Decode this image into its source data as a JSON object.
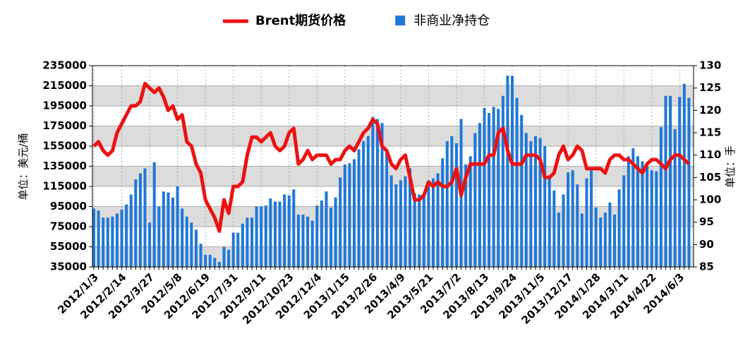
{
  "chart_data": {
    "type": "bar-line",
    "y_label": "单位：美元/桶",
    "y2_label": "单位：手",
    "categories": [
      "2012/1/3",
      null,
      null,
      null,
      null,
      null,
      "2012/2/14",
      null,
      null,
      null,
      null,
      null,
      "2012/3/27",
      null,
      null,
      null,
      null,
      null,
      "2012/5/8",
      null,
      null,
      null,
      null,
      null,
      "2012/6/19",
      null,
      null,
      null,
      null,
      null,
      "2012/7/31",
      null,
      null,
      null,
      null,
      null,
      "2012/9/11",
      null,
      null,
      null,
      null,
      null,
      "2012/10/23",
      null,
      null,
      null,
      null,
      null,
      "2012/12/4",
      null,
      null,
      null,
      null,
      null,
      "2013/1/15",
      null,
      null,
      null,
      null,
      null,
      "2013/2/26",
      null,
      null,
      null,
      null,
      null,
      "2013/4/9",
      null,
      null,
      null,
      null,
      null,
      "2013/5/21",
      null,
      null,
      null,
      null,
      null,
      "2013/7/2",
      null,
      null,
      null,
      null,
      null,
      "2013/8/13",
      null,
      null,
      null,
      null,
      null,
      "2013/9/24",
      null,
      null,
      null,
      null,
      null,
      "2013/11/5",
      null,
      null,
      null,
      null,
      null,
      "2013/12/17",
      null,
      null,
      null,
      null,
      null,
      "2014/1/28",
      null,
      null,
      null,
      null,
      null,
      "2014/3/11",
      null,
      null,
      null,
      null,
      null,
      "2014/4/22",
      null,
      null,
      null,
      null,
      null,
      "2014/6/3",
      null,
      null
    ],
    "series": [
      {
        "name": "Brent期货价格",
        "type": "line",
        "axis": "y2",
        "color": "#ee1111",
        "values": [
          112,
          113,
          111,
          110,
          111,
          115,
          117,
          119,
          121,
          121,
          122,
          126,
          125,
          124,
          125,
          123,
          120,
          121,
          118,
          119,
          113,
          112,
          108,
          106,
          100,
          98,
          96,
          93,
          100,
          97,
          103,
          103,
          104,
          110,
          114,
          114,
          113,
          114,
          115,
          112,
          111,
          112,
          115,
          116,
          108,
          109,
          111,
          109,
          110,
          110,
          110,
          108,
          109,
          109,
          111,
          112,
          111,
          113,
          115,
          116,
          118,
          117,
          112,
          111,
          108,
          107,
          109,
          110,
          105,
          100,
          100,
          101,
          104,
          103,
          104,
          103,
          103,
          104,
          107,
          101,
          105,
          108,
          108,
          108,
          108,
          110,
          110,
          115,
          116,
          111,
          108,
          108,
          108,
          110,
          110,
          110,
          109,
          105,
          105,
          106,
          110,
          112,
          109,
          110,
          112,
          111,
          107,
          107,
          107,
          107,
          106,
          109,
          110,
          110,
          109,
          109,
          108,
          107,
          106,
          108,
          109,
          109,
          108,
          107,
          109,
          110,
          110,
          109,
          108
        ]
      },
      {
        "name": "非商业净持仓",
        "type": "bar",
        "axis": "y",
        "color": "#1f77d9",
        "values": [
          93000,
          91000,
          84000,
          84000,
          85000,
          88000,
          92000,
          97000,
          107000,
          122000,
          128000,
          133000,
          79000,
          139000,
          95000,
          110000,
          109000,
          104000,
          115000,
          93000,
          85000,
          79000,
          72000,
          58000,
          47000,
          47000,
          44000,
          40000,
          55000,
          52000,
          69000,
          69000,
          78000,
          84000,
          84000,
          95000,
          95000,
          96000,
          103000,
          100000,
          100000,
          107000,
          106000,
          112000,
          87000,
          87000,
          85000,
          81000,
          96000,
          101000,
          110000,
          94000,
          104000,
          124000,
          137000,
          138000,
          142000,
          152000,
          160000,
          165000,
          184000,
          182000,
          178000,
          149000,
          126000,
          117000,
          121000,
          125000,
          133000,
          108000,
          107000,
          107000,
          118000,
          123000,
          128000,
          143000,
          160000,
          165000,
          158000,
          182000,
          137000,
          145000,
          168000,
          178000,
          193000,
          188000,
          194000,
          192000,
          205000,
          225000,
          225000,
          203000,
          186000,
          168000,
          160000,
          165000,
          163000,
          155000,
          124000,
          111000,
          89000,
          107000,
          129000,
          131000,
          117000,
          88000,
          123000,
          131000,
          94000,
          84000,
          89000,
          99000,
          87000,
          112000,
          126000,
          145000,
          153000,
          145000,
          140000,
          135000,
          131000,
          130000,
          174000,
          205000,
          205000,
          172000,
          204000,
          217000,
          203000
        ]
      }
    ],
    "ylim": [
      35000,
      235000
    ],
    "yticks": [
      35000,
      55000,
      75000,
      95000,
      115000,
      135000,
      155000,
      175000,
      195000,
      215000,
      235000
    ],
    "y2lim": [
      85,
      130
    ],
    "y2ticks": [
      85,
      90,
      95,
      100,
      105,
      110,
      115,
      120,
      125,
      130
    ],
    "grid": true,
    "legend": "top"
  }
}
